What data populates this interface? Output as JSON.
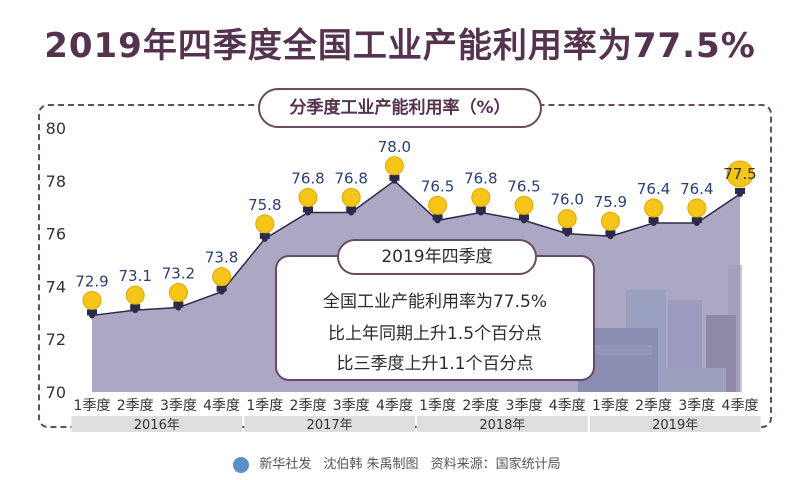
{
  "title": "2019年四季度全国工业产能利用率为77.5%",
  "chart_data": {
    "type": "area",
    "title": "分季度工业产能利用率（%）",
    "ylim": [
      70,
      80
    ],
    "yticks": [
      70,
      72,
      74,
      76,
      78,
      80
    ],
    "categories": [
      "1季度",
      "2季度",
      "3季度",
      "4季度",
      "1季度",
      "2季度",
      "3季度",
      "4季度",
      "1季度",
      "2季度",
      "3季度",
      "4季度",
      "1季度",
      "2季度",
      "3季度",
      "4季度"
    ],
    "year_groups": [
      {
        "label": "2016年",
        "start": 0,
        "end": 3
      },
      {
        "label": "2017年",
        "start": 4,
        "end": 7
      },
      {
        "label": "2018年",
        "start": 8,
        "end": 11
      },
      {
        "label": "2019年",
        "start": 12,
        "end": 15
      }
    ],
    "values": [
      72.9,
      73.1,
      73.2,
      73.8,
      75.8,
      76.8,
      76.8,
      78.0,
      76.5,
      76.8,
      76.5,
      76.0,
      75.9,
      76.4,
      76.4,
      77.5
    ],
    "value_labels": [
      "72.9",
      "73.1",
      "73.2",
      "73.8",
      "75.8",
      "76.8",
      "76.8",
      "78.0",
      "76.5",
      "76.8",
      "76.5",
      "76.0",
      "75.9",
      "76.4",
      "76.4",
      "77.5"
    ],
    "colors": {
      "area": "#9e98b8",
      "bulb": "#f5c518",
      "line": "#2c2a4a"
    }
  },
  "callout": {
    "heading": "2019年四季度",
    "lines": [
      "全国工业产能利用率为77.5%",
      "比上年同期上升1.5个百分点",
      "比三季度上升1.1个百分点"
    ]
  },
  "footer": {
    "agency": "新华社发",
    "authors": "沈伯韩 朱禹制图",
    "source": "资料来源：国家统计局"
  }
}
